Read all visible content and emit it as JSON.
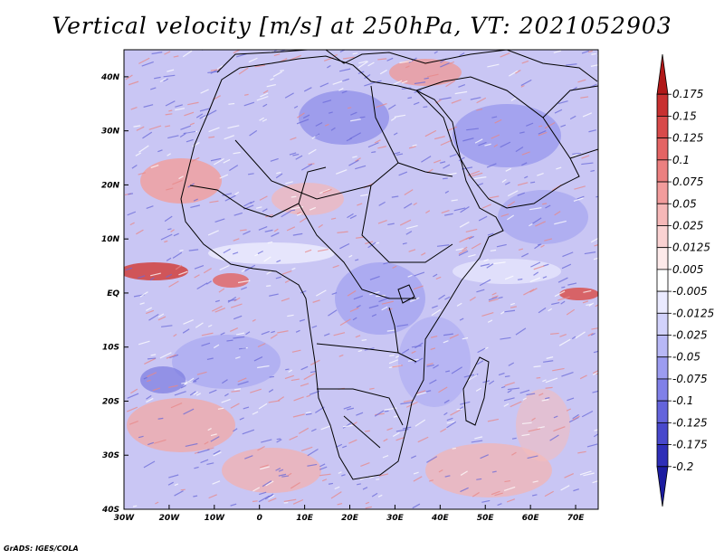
{
  "title": "Vertical velocity [m/s] at 250hPa, VT: 2021052903",
  "credit": "GrADS: IGES/COLA",
  "map": {
    "projection": "latlon",
    "lon_range": [
      -30,
      75
    ],
    "lat_range": [
      -40,
      45
    ],
    "field": "vertical velocity",
    "units": "m/s",
    "level": "250hPa",
    "valid_time": "2021052903",
    "x_ticks": [
      {
        "lon": -30,
        "label": "30W"
      },
      {
        "lon": -20,
        "label": "20W"
      },
      {
        "lon": -10,
        "label": "10W"
      },
      {
        "lon": 0,
        "label": "0"
      },
      {
        "lon": 10,
        "label": "10E"
      },
      {
        "lon": 20,
        "label": "20E"
      },
      {
        "lon": 30,
        "label": "30E"
      },
      {
        "lon": 40,
        "label": "40E"
      },
      {
        "lon": 50,
        "label": "50E"
      },
      {
        "lon": 60,
        "label": "60E"
      },
      {
        "lon": 70,
        "label": "70E"
      }
    ],
    "y_ticks": [
      {
        "lat": 40,
        "label": "40N"
      },
      {
        "lat": 30,
        "label": "30N"
      },
      {
        "lat": 20,
        "label": "20N"
      },
      {
        "lat": 10,
        "label": "10N"
      },
      {
        "lat": 0,
        "label": "EQ"
      },
      {
        "lat": -10,
        "label": "10S"
      },
      {
        "lat": -20,
        "label": "20S"
      },
      {
        "lat": -30,
        "label": "30S"
      },
      {
        "lat": -40,
        "label": "40S"
      }
    ]
  },
  "colorbar": {
    "levels": [
      "0.175",
      "0.15",
      "0.125",
      "0.1",
      "0.075",
      "0.05",
      "0.025",
      "0.0125",
      "0.005",
      "-0.005",
      "-0.0125",
      "-0.025",
      "-0.05",
      "-0.075",
      "-0.1",
      "-0.125",
      "-0.175",
      "-0.2"
    ],
    "colors": [
      "#b01818",
      "#c83030",
      "#d84a4a",
      "#e46464",
      "#ec8080",
      "#f29c9c",
      "#f6b8b8",
      "#fad2d2",
      "#fdeaea",
      "#ffffff",
      "#eaeaff",
      "#d2d2fb",
      "#b8b8f6",
      "#9c9cf0",
      "#8080e8",
      "#6464dc",
      "#4848cc",
      "#2e2eb8",
      "#1c1ca0"
    ]
  }
}
